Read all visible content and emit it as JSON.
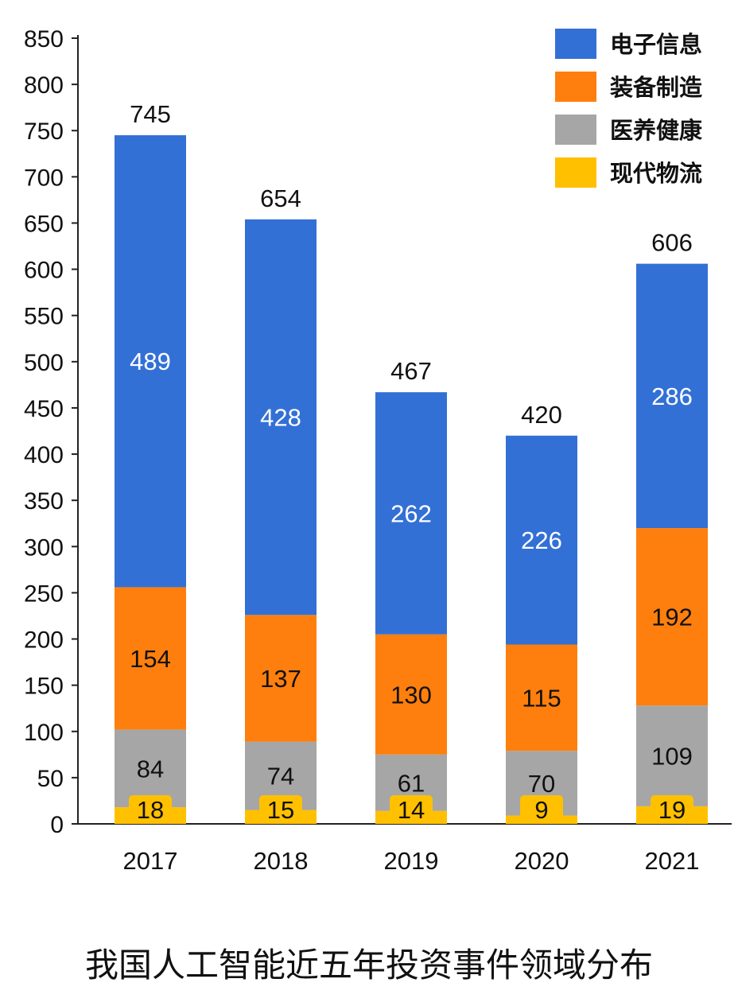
{
  "chart_data": {
    "type": "bar",
    "stacked": true,
    "title": "我国人工智能近五年投资事件领域分布",
    "xlabel": "",
    "ylabel": "",
    "categories": [
      "2017",
      "2018",
      "2019",
      "2020",
      "2021"
    ],
    "ylim": [
      0,
      850
    ],
    "yticks": [
      0,
      50,
      100,
      150,
      200,
      250,
      300,
      350,
      400,
      450,
      500,
      550,
      600,
      650,
      700,
      750,
      800,
      850
    ],
    "legend_position": "top-right",
    "totals": [
      745,
      654,
      467,
      420,
      606
    ],
    "series": [
      {
        "name": "现代物流",
        "color": "#FFC000",
        "label_color": "#111111",
        "values": [
          18,
          15,
          14,
          9,
          19
        ]
      },
      {
        "name": "医养健康",
        "color": "#A6A6A6",
        "label_color": "#111111",
        "values": [
          84,
          74,
          61,
          70,
          109
        ]
      },
      {
        "name": "装备制造",
        "color": "#FF7F0E",
        "label_color": "#111111",
        "values": [
          154,
          137,
          130,
          115,
          192
        ]
      },
      {
        "name": "电子信息",
        "color": "#3370D6",
        "label_color": "#FFFFFF",
        "values": [
          489,
          428,
          262,
          226,
          286
        ]
      }
    ],
    "legend_order": [
      "电子信息",
      "装备制造",
      "医养健康",
      "现代物流"
    ]
  }
}
